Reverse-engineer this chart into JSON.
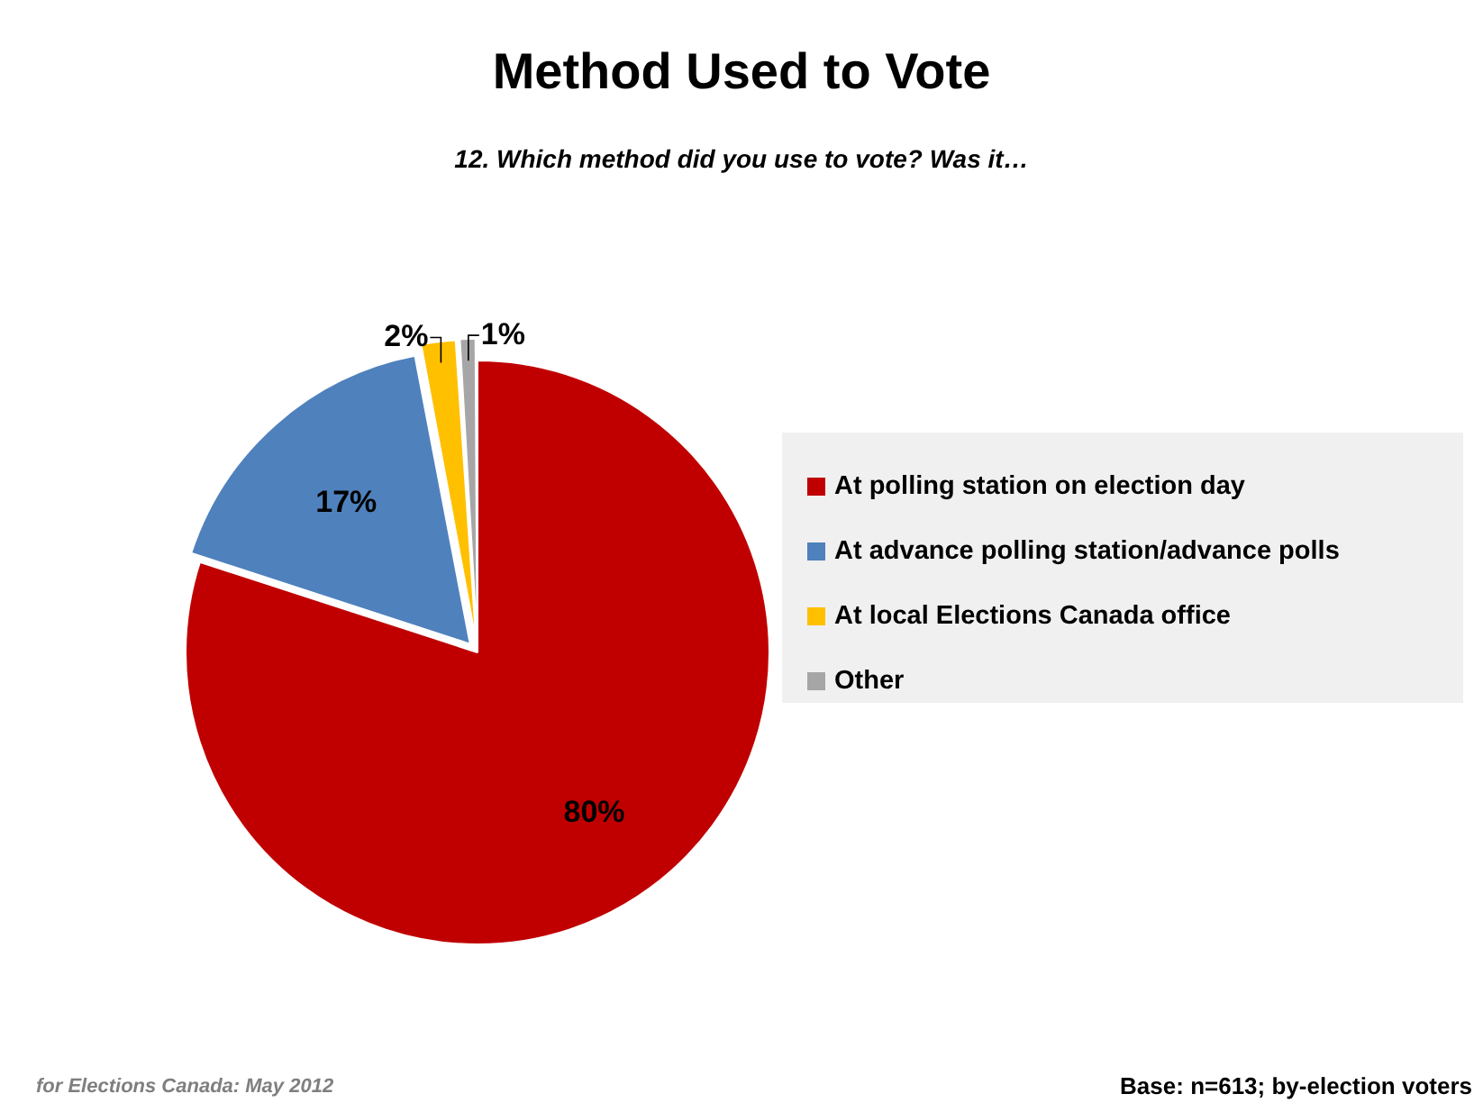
{
  "chart_data": {
    "type": "pie",
    "title": "Method Used to Vote",
    "subtitle": "12. Which method did you use to vote? Was it…",
    "categories": [
      "At polling station on election day",
      "At advance polling station/advance polls",
      "At local Elections Canada office",
      "Other"
    ],
    "values": [
      80,
      17,
      2,
      1
    ],
    "colors": [
      "#c00000",
      "#4f81bd",
      "#ffc000",
      "#a6a6a6"
    ],
    "value_labels": [
      "80%",
      "17%",
      "2%",
      "1%"
    ],
    "legend": "right",
    "annotations": [
      "for Elections Canada: May 2012",
      "Base: n=613; by-election voters"
    ]
  }
}
